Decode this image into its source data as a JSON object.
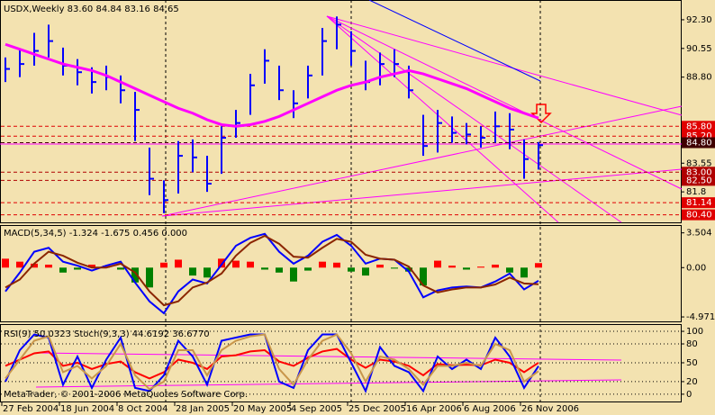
{
  "chart_data": [
    {
      "type": "ohlc",
      "title": "USDX,Weekly  83.60 84.84 83.16 84.65",
      "categories": [
        "27 Feb 2004",
        null,
        null,
        null,
        "18 Jun 2004",
        null,
        null,
        null,
        "8 Oct 2004",
        null,
        null,
        null,
        "28 Jan 2005",
        null,
        null,
        null,
        "20 May 2005",
        null,
        null,
        null,
        "4 Sep 2005",
        null,
        null,
        null,
        "25 Dec 2005",
        null,
        null,
        null,
        "16 Apr 2006",
        null,
        null,
        null,
        "6 Aug 2006",
        null,
        null,
        null,
        "26 Nov 2006",
        null
      ],
      "color": "#0000ff",
      "high": [
        90.0,
        90.5,
        91.5,
        92.0,
        90.6,
        89.9,
        89.4,
        89.5,
        88.9,
        87.9,
        84.5,
        82.5,
        84.9,
        85.0,
        84.0,
        85.8,
        86.8,
        89.0,
        90.5,
        89.5,
        88.0,
        89.5,
        91.8,
        92.5,
        91.6,
        89.8,
        90.3,
        90.5,
        89.5,
        86.5,
        86.8,
        86.4,
        86.0,
        85.8,
        86.7,
        86.6,
        85.0,
        84.84
      ],
      "low": [
        88.5,
        88.8,
        89.5,
        90.0,
        88.9,
        88.3,
        87.8,
        88.0,
        87.2,
        84.9,
        81.6,
        80.5,
        81.7,
        83.0,
        81.8,
        82.9,
        85.1,
        86.5,
        88.4,
        87.4,
        86.3,
        87.5,
        88.9,
        90.5,
        89.5,
        88.0,
        88.3,
        88.8,
        87.5,
        84.0,
        84.2,
        84.8,
        84.7,
        84.5,
        84.8,
        84.4,
        82.6,
        83.16
      ],
      "close": [
        89.3,
        89.6,
        90.4,
        91.0,
        89.5,
        89.1,
        88.5,
        88.8,
        88.0,
        86.8,
        82.6,
        81.3,
        84.0,
        83.9,
        82.3,
        85.1,
        86.0,
        88.3,
        89.8,
        88.0,
        87.2,
        88.9,
        91.0,
        92.0,
        90.4,
        88.5,
        89.6,
        89.6,
        88.0,
        84.6,
        86.0,
        85.4,
        85.3,
        85.1,
        85.8,
        85.6,
        83.8,
        84.65
      ],
      "lines": [
        {
          "color": "#ff00ff",
          "values": [
            90.8,
            90.5,
            90.2,
            89.9,
            89.6,
            89.4,
            89.2,
            88.9,
            88.5,
            88.1,
            87.7,
            87.3,
            86.9,
            86.6,
            86.2,
            85.9,
            85.8,
            85.9,
            86.1,
            86.4,
            86.8,
            87.2,
            87.6,
            88.0,
            88.3,
            88.5,
            88.8,
            89.0,
            89.2,
            89.0,
            88.7,
            88.4,
            88.1,
            87.7,
            87.3,
            86.9,
            86.6,
            86.3
          ]
        }
      ],
      "ylim": [
        79.94,
        93.45
      ],
      "yticks": [
        {
          "value": 92.3,
          "label": "92.30"
        },
        {
          "value": 90.55,
          "label": "90.55"
        },
        {
          "value": 88.8,
          "label": "88.80"
        },
        83.55,
        81.8
      ],
      "levels": [
        {
          "value": 85.8,
          "label": "85.80",
          "color": "#e00000"
        },
        {
          "value": 85.2,
          "label": "85.20",
          "color": "#e00000"
        },
        {
          "value": 84.8,
          "label": "84.80",
          "color": "#400000"
        },
        {
          "value": 83.0,
          "label": "83.00",
          "color": "#b00000"
        },
        {
          "value": 82.5,
          "label": "82.50",
          "color": "#b00000"
        },
        {
          "value": 81.14,
          "label": "81.14",
          "color": "#e00000"
        },
        {
          "value": 80.4,
          "label": "80.40",
          "color": "#e00000"
        }
      ]
    },
    {
      "type": "macd",
      "title": "MACD(5,34,5) -1.324 -1.675 0.456 0.000",
      "histogram": {
        "up_color": "#ff0000",
        "down_color": "#008000",
        "values": [
          0.9,
          0.6,
          0.4,
          0.3,
          -0.5,
          -0.2,
          0.3,
          0.2,
          -0.2,
          -1.5,
          -2.0,
          0.5,
          0.8,
          -0.8,
          -1.0,
          0.9,
          0.7,
          0.6,
          -0.2,
          -0.5,
          -1.4,
          -0.3,
          0.6,
          0.5,
          -0.4,
          -0.8,
          0.3,
          -0.1,
          -0.4,
          -1.8,
          0.7,
          0.2,
          -0.2,
          0.1,
          0.3,
          -0.5,
          -1.0,
          0.456
        ]
      },
      "series": [
        {
          "color": "#0000ff",
          "values": [
            -2.4,
            -0.5,
            1.6,
            2.0,
            0.6,
            0.2,
            -0.3,
            0.2,
            0.6,
            -1.5,
            -3.4,
            -4.6,
            -2.4,
            -1.2,
            -1.6,
            0.3,
            2.2,
            3.0,
            3.4,
            1.6,
            0.4,
            1.2,
            2.6,
            3.3,
            2.2,
            0.4,
            0.9,
            0.8,
            -0.4,
            -3.0,
            -2.3,
            -2.0,
            -1.9,
            -2.0,
            -1.4,
            -0.6,
            -2.2,
            -1.324
          ]
        },
        {
          "color": "#8b2500",
          "values": [
            -2.0,
            -1.2,
            0.4,
            1.6,
            1.2,
            0.5,
            0.0,
            0.0,
            0.4,
            -0.5,
            -2.4,
            -3.8,
            -3.4,
            -2.0,
            -1.5,
            -0.6,
            1.2,
            2.5,
            3.2,
            2.4,
            1.1,
            1.0,
            2.0,
            2.9,
            2.6,
            1.3,
            0.9,
            0.8,
            0.1,
            -1.8,
            -2.5,
            -2.2,
            -2.0,
            -2.0,
            -1.7,
            -1.0,
            -1.6,
            -1.675
          ]
        }
      ],
      "ylim": [
        -5.42,
        4.2
      ],
      "yticks": [
        3.504,
        {
          "value": 0,
          "label": "0.00"
        },
        -4.971
      ]
    },
    {
      "type": "oscillator",
      "title": "RSI(9) 50.0323  Stoch(9,3,3) 44.6192 36.6770",
      "note": "MetaTrader, © 2001-2006 MetaQuotes Software Corp.",
      "grid": true,
      "series": [
        {
          "color": "#ff0000",
          "values": [
            45,
            55,
            65,
            68,
            45,
            50,
            40,
            48,
            52,
            35,
            25,
            35,
            55,
            50,
            40,
            60,
            62,
            68,
            70,
            52,
            45,
            58,
            68,
            72,
            55,
            42,
            55,
            52,
            45,
            30,
            48,
            46,
            47,
            46,
            55,
            50,
            35,
            50.0323
          ]
        },
        {
          "color": "#0000ff",
          "values": [
            20,
            70,
            95,
            90,
            15,
            60,
            10,
            55,
            90,
            10,
            5,
            30,
            85,
            60,
            15,
            85,
            90,
            95,
            95,
            20,
            10,
            70,
            95,
            95,
            50,
            5,
            75,
            45,
            35,
            5,
            60,
            40,
            55,
            40,
            90,
            60,
            10,
            44.6192
          ]
        },
        {
          "color": "#c8964b",
          "values": [
            25,
            55,
            85,
            92,
            35,
            45,
            25,
            45,
            80,
            30,
            8,
            20,
            70,
            70,
            30,
            70,
            85,
            92,
            95,
            40,
            15,
            55,
            85,
            95,
            65,
            20,
            60,
            55,
            40,
            15,
            45,
            45,
            50,
            45,
            80,
            70,
            20,
            36.677
          ]
        }
      ],
      "ylim": [
        -11.6,
        110.1
      ],
      "yticks": [
        100,
        80,
        50,
        20,
        0
      ]
    }
  ]
}
